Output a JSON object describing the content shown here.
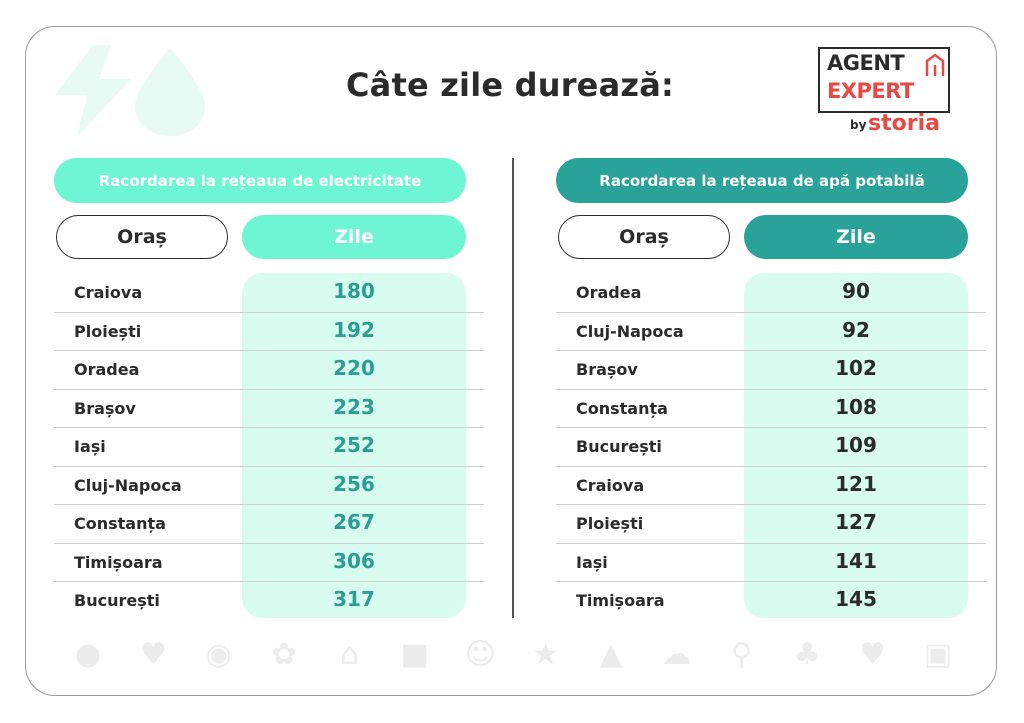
{
  "title": "Câte zile durează:",
  "logo": {
    "line1": "AGENT",
    "line2": "EXPERT",
    "by": "by",
    "brand": "storia"
  },
  "colors": {
    "mint": "#6ef6d4",
    "teal": "#29a39a",
    "mint_light": "#d8fcef",
    "logo_red": "#e84a43",
    "dark": "#2b2b2b"
  },
  "left": {
    "heading": "Racordarea la rețeaua de electricitate",
    "col_city": "Oraș",
    "col_days": "Zile",
    "rows": [
      {
        "city": "Craiova",
        "days": "180"
      },
      {
        "city": "Ploiești",
        "days": "192"
      },
      {
        "city": "Oradea",
        "days": "220"
      },
      {
        "city": "Brașov",
        "days": "223"
      },
      {
        "city": "Iași",
        "days": "252"
      },
      {
        "city": "Cluj-Napoca",
        "days": "256"
      },
      {
        "city": "Constanța",
        "days": "267"
      },
      {
        "city": "Timișoara",
        "days": "306"
      },
      {
        "city": "București",
        "days": "317"
      }
    ]
  },
  "right": {
    "heading": "Racordarea la rețeaua de apă potabilă",
    "col_city": "Oraș",
    "col_days": "Zile",
    "rows": [
      {
        "city": "Oradea",
        "days": "90"
      },
      {
        "city": "Cluj-Napoca",
        "days": "92"
      },
      {
        "city": "Brașov",
        "days": "102"
      },
      {
        "city": "Constanța",
        "days": "108"
      },
      {
        "city": "București",
        "days": "109"
      },
      {
        "city": "Craiova",
        "days": "121"
      },
      {
        "city": "Ploiești",
        "days": "127"
      },
      {
        "city": "Iași",
        "days": "141"
      },
      {
        "city": "Timișoara",
        "days": "145"
      }
    ]
  },
  "decor_icons": [
    "pin-icon",
    "heart-icon",
    "eye-icon",
    "flower-icon",
    "home-icon",
    "chat-icon",
    "smile-icon",
    "star-icon",
    "thumbs-up-icon",
    "cloud-icon",
    "key-icon",
    "tree-icon",
    "heart-icon",
    "briefcase-icon"
  ]
}
